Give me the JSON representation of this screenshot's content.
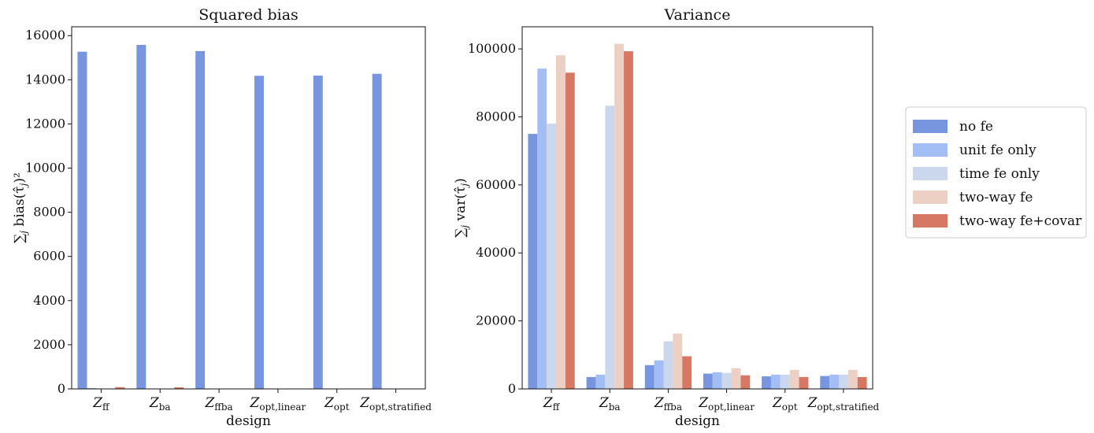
{
  "chart_data": [
    {
      "type": "bar",
      "title": "Squared bias",
      "xlabel": "design",
      "ylabel": "∑",
      "ylabel_sub": "j",
      "ylabel_rest": " bias(τ̂",
      "ylabel_sub2": "j",
      "ylabel_end": ")²",
      "ylim": [
        0,
        16400
      ],
      "yticks": [
        0,
        2000,
        4000,
        6000,
        8000,
        10000,
        12000,
        14000,
        16000
      ],
      "categories": [
        {
          "main": "Z",
          "sub": "ff"
        },
        {
          "main": "Z",
          "sub": "ba"
        },
        {
          "main": "Z",
          "sub": "ffba"
        },
        {
          "main": "Z",
          "sub": "opt,linear"
        },
        {
          "main": "Z",
          "sub": "opt"
        },
        {
          "main": "Z",
          "sub": "opt,stratified"
        }
      ],
      "series": [
        {
          "name": "no fe",
          "values": [
            15270,
            15580,
            15300,
            14180,
            14190,
            14270
          ]
        },
        {
          "name": "unit fe only",
          "values": [
            40,
            5,
            5,
            5,
            5,
            5
          ]
        },
        {
          "name": "time fe only",
          "values": [
            5,
            5,
            5,
            5,
            5,
            5
          ]
        },
        {
          "name": "two-way fe",
          "values": [
            5,
            5,
            5,
            5,
            5,
            5
          ]
        },
        {
          "name": "two-way fe+covar",
          "values": [
            80,
            75,
            5,
            5,
            5,
            5
          ]
        }
      ]
    },
    {
      "type": "bar",
      "title": "Variance",
      "xlabel": "design",
      "ylabel": "∑",
      "ylabel_sub": "j",
      "ylabel_rest": " var(τ̂",
      "ylabel_sub2": "j",
      "ylabel_end": ")",
      "ylim": [
        0,
        106500
      ],
      "yticks": [
        0,
        20000,
        40000,
        60000,
        80000,
        100000
      ],
      "categories": [
        {
          "main": "Z",
          "sub": "ff"
        },
        {
          "main": "Z",
          "sub": "ba"
        },
        {
          "main": "Z",
          "sub": "ffba"
        },
        {
          "main": "Z",
          "sub": "opt,linear"
        },
        {
          "main": "Z",
          "sub": "opt"
        },
        {
          "main": "Z",
          "sub": "opt,stratified"
        }
      ],
      "series": [
        {
          "name": "no fe",
          "values": [
            75000,
            3500,
            7000,
            4500,
            3700,
            3800
          ]
        },
        {
          "name": "unit fe only",
          "values": [
            94200,
            4200,
            8400,
            4900,
            4200,
            4200
          ]
        },
        {
          "name": "time fe only",
          "values": [
            78000,
            83300,
            14000,
            4700,
            4200,
            4200
          ]
        },
        {
          "name": "two-way fe",
          "values": [
            98100,
            101500,
            16300,
            6100,
            5600,
            5600
          ]
        },
        {
          "name": "two-way fe+covar",
          "values": [
            93000,
            99300,
            9600,
            4000,
            3500,
            3500
          ]
        }
      ]
    }
  ],
  "legend": {
    "placement": "right",
    "items": [
      "no fe",
      "unit fe only",
      "time fe only",
      "two-way fe",
      "two-way fe+covar"
    ]
  },
  "colors": {
    "no fe": "#7896e0",
    "unit fe only": "#a3bef5",
    "time fe only": "#cbd7ec",
    "two-way fe": "#ecd0c4",
    "two-way fe+covar": "#d67863"
  }
}
